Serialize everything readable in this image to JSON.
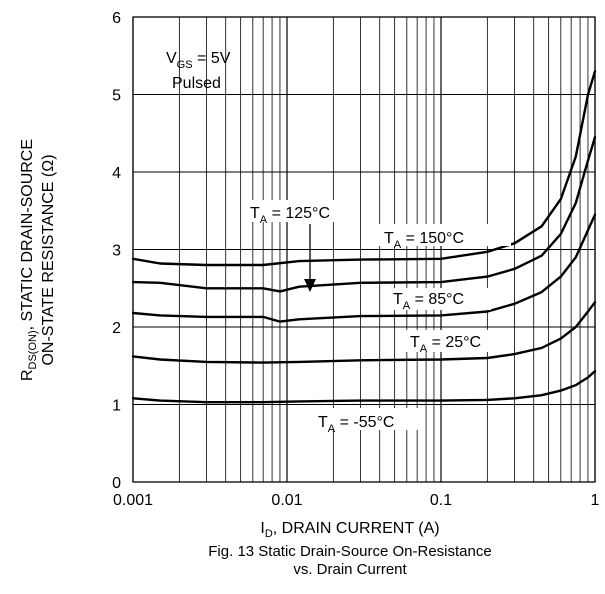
{
  "chart_data": {
    "type": "line",
    "x_scale": "log",
    "xlim": [
      0.001,
      1
    ],
    "ylim": [
      0,
      6
    ],
    "grid": true,
    "x_ticks": [
      "0.001",
      "0.01",
      "0.1",
      "1"
    ],
    "y_ticks": [
      "0",
      "1",
      "2",
      "3",
      "4",
      "5",
      "6"
    ],
    "xlabel": {
      "prefix": "I",
      "sub": "D",
      "rest": ", DRAIN CURRENT (A)"
    },
    "ylabel": {
      "line1_prefix": "R",
      "line1_sub": "DS(ON)",
      "line1_rest": ", STATIC DRAIN-SOURCE",
      "line2": "ON-STATE RESISTANCE (Ω)"
    },
    "caption": [
      "Fig. 13  Static Drain-Source On-Resistance",
      "vs. Drain Current"
    ],
    "condition": {
      "vgs_prefix": "V",
      "vgs_sub": "GS",
      "vgs_rest": " = 5V",
      "line2": "Pulsed"
    },
    "series": [
      {
        "name": "T_A = 150°C",
        "label": {
          "prefix": "T",
          "sub": "A",
          "rest": " = 150°C"
        },
        "x": [
          0.001,
          0.0015,
          0.003,
          0.007,
          0.012,
          0.03,
          0.1,
          0.2,
          0.3,
          0.45,
          0.6,
          0.75,
          0.9,
          1.0
        ],
        "y": [
          2.88,
          2.82,
          2.8,
          2.8,
          2.85,
          2.87,
          2.88,
          2.97,
          3.08,
          3.3,
          3.65,
          4.2,
          5.0,
          5.3
        ]
      },
      {
        "name": "T_A = 125°C",
        "label": {
          "prefix": "T",
          "sub": "A",
          "rest": " = 125°C"
        },
        "x": [
          0.001,
          0.0015,
          0.003,
          0.007,
          0.009,
          0.012,
          0.03,
          0.1,
          0.2,
          0.3,
          0.45,
          0.6,
          0.75,
          0.9,
          1.0
        ],
        "y": [
          2.58,
          2.57,
          2.5,
          2.5,
          2.46,
          2.52,
          2.57,
          2.58,
          2.65,
          2.75,
          2.92,
          3.2,
          3.6,
          4.15,
          4.45
        ]
      },
      {
        "name": "T_A = 85°C",
        "label": {
          "prefix": "T",
          "sub": "A",
          "rest": " = 85°C"
        },
        "x": [
          0.001,
          0.0015,
          0.003,
          0.007,
          0.009,
          0.012,
          0.03,
          0.1,
          0.2,
          0.3,
          0.45,
          0.6,
          0.75,
          0.9,
          1.0
        ],
        "y": [
          2.18,
          2.15,
          2.13,
          2.13,
          2.07,
          2.1,
          2.14,
          2.15,
          2.2,
          2.3,
          2.45,
          2.65,
          2.9,
          3.25,
          3.45
        ]
      },
      {
        "name": "T_A = 25°C",
        "label": {
          "prefix": "T",
          "sub": "A",
          "rest": " = 25°C"
        },
        "x": [
          0.001,
          0.0015,
          0.003,
          0.007,
          0.012,
          0.03,
          0.1,
          0.2,
          0.3,
          0.45,
          0.6,
          0.75,
          0.9,
          1.0
        ],
        "y": [
          1.62,
          1.58,
          1.55,
          1.54,
          1.55,
          1.57,
          1.58,
          1.6,
          1.65,
          1.73,
          1.85,
          2.0,
          2.2,
          2.32
        ]
      },
      {
        "name": "T_A = -55°C",
        "label": {
          "prefix": "T",
          "sub": "A",
          "rest": " = -55°C"
        },
        "x": [
          0.001,
          0.0015,
          0.003,
          0.007,
          0.012,
          0.03,
          0.1,
          0.2,
          0.3,
          0.45,
          0.6,
          0.75,
          0.9,
          1.0
        ],
        "y": [
          1.08,
          1.05,
          1.03,
          1.03,
          1.04,
          1.05,
          1.05,
          1.06,
          1.08,
          1.12,
          1.18,
          1.25,
          1.35,
          1.43
        ]
      }
    ]
  }
}
